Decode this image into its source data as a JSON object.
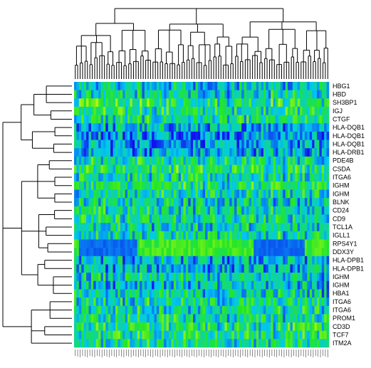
{
  "chart_data": {
    "type": "heatmap",
    "title": "",
    "xlabel": "",
    "ylabel": "",
    "n_columns": 105,
    "column_labels_legible": false,
    "row_labels": [
      "HBG1",
      "HBD",
      "SH3BP1",
      "IGJ",
      "CTGF",
      "HLA-DQB1",
      "HLA-DQB1",
      "HLA-DQB1",
      "HLA-DRB1",
      "PDE4B",
      "CSDA",
      "ITGA6",
      "IGHM",
      "IGHM",
      "BLNK",
      "CD24",
      "CD9",
      "TCL1A",
      "IGLL1",
      "RPS4Y1",
      "DDX3Y",
      "HLA-DPB1",
      "HLA-DPB1",
      "IGHM",
      "IGHM",
      "HBA1",
      "ITGA6",
      "ITGA6",
      "PROM1",
      "CD3D",
      "TCF7",
      "ITM2A"
    ],
    "color_scale": {
      "low": "#1010ee",
      "mid": "#22ee22",
      "high": "#ffff00"
    },
    "row_mean_levels": [
      0.35,
      0.4,
      0.55,
      0.5,
      0.45,
      0.3,
      0.25,
      0.25,
      0.28,
      0.45,
      0.55,
      0.45,
      0.5,
      0.45,
      0.4,
      0.45,
      0.45,
      0.4,
      0.45,
      0.45,
      0.45,
      0.3,
      0.3,
      0.4,
      0.35,
      0.4,
      0.45,
      0.45,
      0.45,
      0.5,
      0.5,
      0.45
    ],
    "row_dendrogram": true,
    "column_dendrogram": true,
    "grid": false,
    "legend": "none"
  }
}
